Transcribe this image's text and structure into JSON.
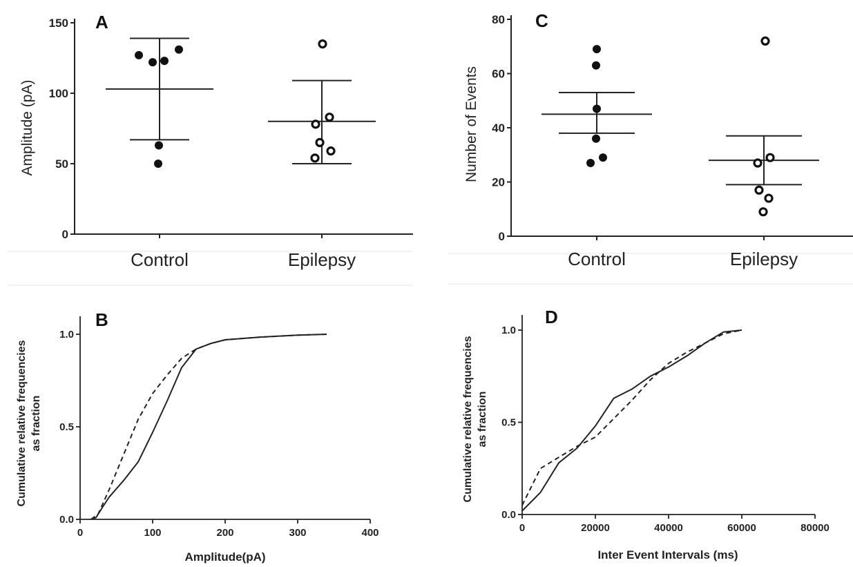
{
  "chart_data": [
    {
      "panel": "A",
      "type": "scatter",
      "ylabel": "Amplitude (pA)",
      "ylim": [
        0,
        150
      ],
      "yticks": [
        "0",
        "50",
        "100",
        "150"
      ],
      "categories": [
        "Control",
        "Epilepsy"
      ],
      "series": [
        {
          "name": "Control",
          "marker": "filled",
          "values": [
            127,
            122,
            123,
            131,
            63,
            50
          ],
          "mean": 103,
          "sd_upper": 139,
          "sd_lower": 67
        },
        {
          "name": "Epilepsy",
          "marker": "open",
          "values": [
            135,
            78,
            83,
            65,
            59,
            54
          ],
          "mean": 80,
          "sd_upper": 109,
          "sd_lower": 50
        }
      ]
    },
    {
      "panel": "C",
      "type": "scatter",
      "ylabel": "Number of Events",
      "ylim": [
        0,
        80
      ],
      "yticks": [
        "0",
        "20",
        "40",
        "60",
        "80"
      ],
      "categories": [
        "Control",
        "Epilepsy"
      ],
      "series": [
        {
          "name": "Control",
          "marker": "filled",
          "values": [
            69,
            63,
            47,
            36,
            29,
            27
          ],
          "mean": 45,
          "sem_upper": 53,
          "sem_lower": 38
        },
        {
          "name": "Epilepsy",
          "marker": "open",
          "values": [
            72,
            29,
            27,
            17,
            14,
            9
          ],
          "mean": 28,
          "sem_upper": 37,
          "sem_lower": 19
        }
      ]
    },
    {
      "panel": "B",
      "type": "line",
      "xlabel": "Amplitude(pA)",
      "ylabel": "Cumulative relative frequencies as fraction",
      "ylabel_lines": [
        "Cumulative relative frequencies",
        "as fraction"
      ],
      "xlim": [
        0,
        400
      ],
      "ylim": [
        0,
        1.0
      ],
      "xticks": [
        "0",
        "100",
        "200",
        "300",
        "400"
      ],
      "yticks": [
        "0.0",
        "0.5",
        "1.0"
      ],
      "series": [
        {
          "style": "solid",
          "x": [
            15,
            22,
            30,
            40,
            60,
            80,
            100,
            120,
            140,
            160,
            180,
            200,
            250,
            300,
            340
          ],
          "y": [
            0,
            0.01,
            0.06,
            0.12,
            0.21,
            0.31,
            0.47,
            0.64,
            0.82,
            0.92,
            0.95,
            0.97,
            0.985,
            0.995,
            1.0
          ]
        },
        {
          "style": "dashed",
          "x": [
            15,
            25,
            40,
            60,
            80,
            100,
            120,
            140,
            160,
            180,
            200,
            250,
            300,
            340
          ],
          "y": [
            0,
            0.03,
            0.16,
            0.35,
            0.54,
            0.68,
            0.78,
            0.87,
            0.92,
            0.95,
            0.97,
            0.985,
            0.995,
            1.0
          ]
        }
      ]
    },
    {
      "panel": "D",
      "type": "line",
      "xlabel": "Inter Event Intervals (ms)",
      "ylabel": "Cumulative relative frequencies as fraction",
      "ylabel_lines": [
        "Cumulative relative frequencies",
        "as fraction"
      ],
      "xlim": [
        0,
        80000
      ],
      "ylim": [
        0,
        1.0
      ],
      "xticks": [
        "0",
        "20000",
        "40000",
        "60000",
        "80000"
      ],
      "yticks": [
        "0.0",
        "0.5",
        "1.0"
      ],
      "series": [
        {
          "style": "solid",
          "x": [
            0,
            5000,
            10000,
            15000,
            20000,
            25000,
            30000,
            35000,
            40000,
            45000,
            50000,
            55000,
            60000
          ],
          "y": [
            0.02,
            0.12,
            0.28,
            0.36,
            0.48,
            0.63,
            0.68,
            0.75,
            0.8,
            0.86,
            0.93,
            0.99,
            1.0
          ]
        },
        {
          "style": "dashed",
          "x": [
            0,
            5000,
            10000,
            15000,
            20000,
            25000,
            30000,
            35000,
            40000,
            45000,
            50000,
            55000,
            60000
          ],
          "y": [
            0.05,
            0.25,
            0.31,
            0.37,
            0.42,
            0.52,
            0.62,
            0.73,
            0.82,
            0.88,
            0.93,
            0.98,
            1.0
          ]
        }
      ]
    }
  ]
}
